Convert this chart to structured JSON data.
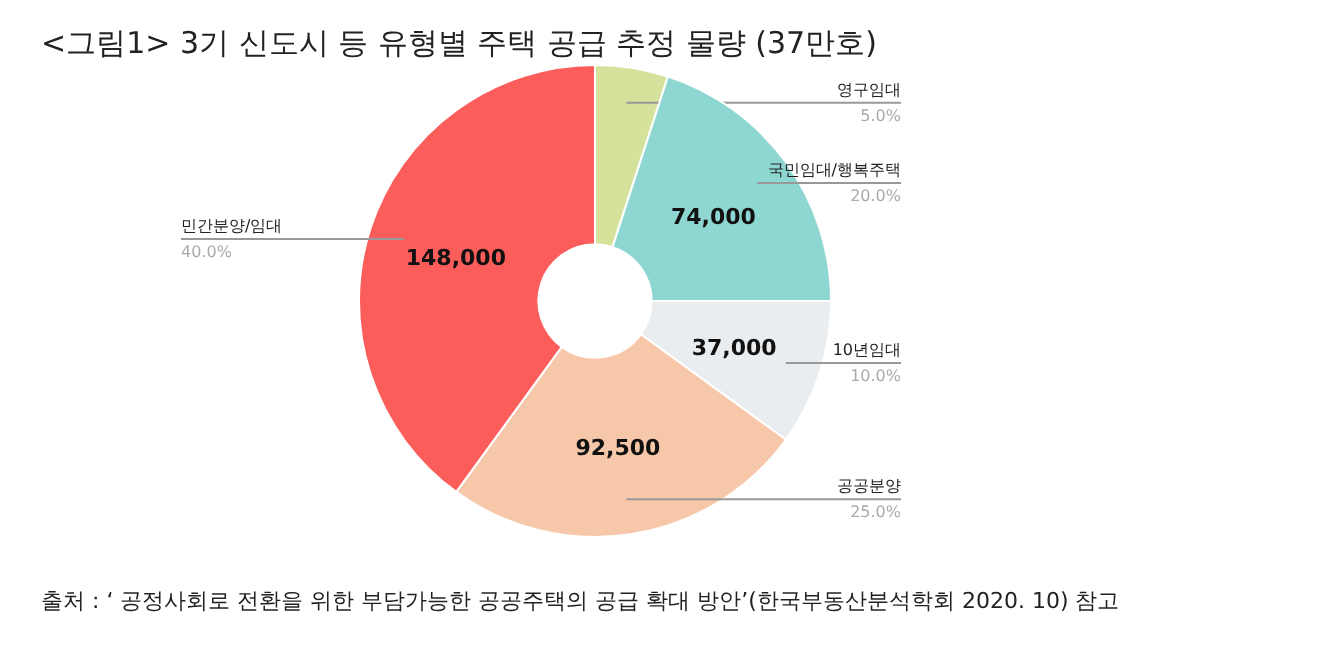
{
  "chart_data": {
    "type": "donut",
    "title": "<그림1>  3기 신도시 등 유형별 주택 공급  추정 물량 (37만호)",
    "categories": [
      "영구임대",
      "국민임대/행복주택",
      "10년임대",
      "공공분양",
      "민간분양/임대"
    ],
    "values": [
      18500,
      74000,
      37000,
      92500,
      148000
    ],
    "colors": [
      "#d5e29c",
      "#8ed6d1",
      "#e9edf0",
      "#f6c7a8",
      "#fb5d5b"
    ],
    "value_labels": [
      null,
      "74,000",
      "37,000",
      "92,500",
      "148,000"
    ],
    "annotations": [
      {
        "text": "5.0%",
        "x": "영구임대"
      },
      {
        "text": "20.0%",
        "x": "국민임대/행복주택"
      },
      {
        "text": "10.0%",
        "x": "10년임대"
      },
      {
        "text": "25.0%",
        "x": "공공분양"
      },
      {
        "text": "40.0%",
        "x": "민간분양/임대"
      },
      "출처 : ‘ 공정사회로 전환을 위한 부담가능한 공공주택의 공급 확대 방안’(한국부동산분석학회 2020. 10) 참고"
    ]
  }
}
